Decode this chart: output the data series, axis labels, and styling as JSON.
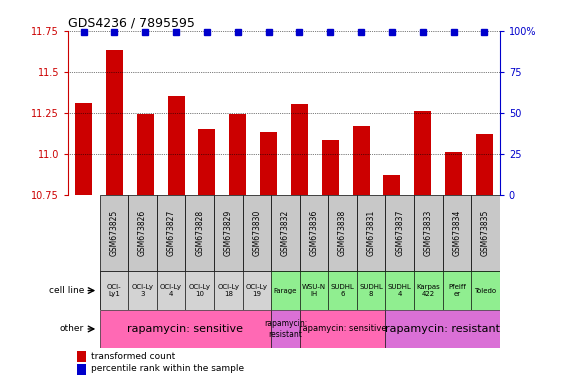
{
  "title": "GDS4236 / 7895595",
  "samples": [
    "GSM673825",
    "GSM673826",
    "GSM673827",
    "GSM673828",
    "GSM673829",
    "GSM673830",
    "GSM673832",
    "GSM673836",
    "GSM673838",
    "GSM673831",
    "GSM673837",
    "GSM673833",
    "GSM673834",
    "GSM673835"
  ],
  "transformed_counts": [
    11.31,
    11.63,
    11.24,
    11.35,
    11.15,
    11.24,
    11.13,
    11.3,
    11.08,
    11.17,
    10.87,
    11.26,
    11.01,
    11.12
  ],
  "cell_lines": [
    "OCI-\nLy1",
    "OCI-Ly\n3",
    "OCI-Ly\n4",
    "OCI-Ly\n10",
    "OCI-Ly\n18",
    "OCI-Ly\n19",
    "Farage",
    "WSU-N\nIH",
    "SUDHL\n6",
    "SUDHL\n8",
    "SUDHL\n4",
    "Karpas\n422",
    "Pfeiff\ner",
    "Toledo"
  ],
  "cell_line_colors": [
    "#d3d3d3",
    "#d3d3d3",
    "#d3d3d3",
    "#d3d3d3",
    "#d3d3d3",
    "#d3d3d3",
    "#90ee90",
    "#90ee90",
    "#90ee90",
    "#90ee90",
    "#90ee90",
    "#90ee90",
    "#90ee90",
    "#90ee90"
  ],
  "other_groups": [
    {
      "label": "rapamycin: sensitive",
      "start": 0,
      "end": 5,
      "color": "#ff69b4",
      "fontsize": 8
    },
    {
      "label": "rapamycin:\nresistant",
      "start": 6,
      "end": 6,
      "color": "#da70d6",
      "fontsize": 5.5
    },
    {
      "label": "rapamycin: sensitive",
      "start": 7,
      "end": 9,
      "color": "#ff69b4",
      "fontsize": 6
    },
    {
      "label": "rapamycin: resistant",
      "start": 10,
      "end": 13,
      "color": "#da70d6",
      "fontsize": 8
    }
  ],
  "ylim_left": [
    10.75,
    11.75
  ],
  "ylim_right": [
    0,
    100
  ],
  "yticks_left": [
    10.75,
    11.0,
    11.25,
    11.5,
    11.75
  ],
  "yticks_right": [
    0,
    25,
    50,
    75,
    100
  ],
  "bar_color": "#cc0000",
  "dot_color": "#0000cc",
  "bg_color": "#ffffff",
  "gsm_label_bg": "#c8c8c8",
  "cell_label": "cell line",
  "other_label": "other"
}
